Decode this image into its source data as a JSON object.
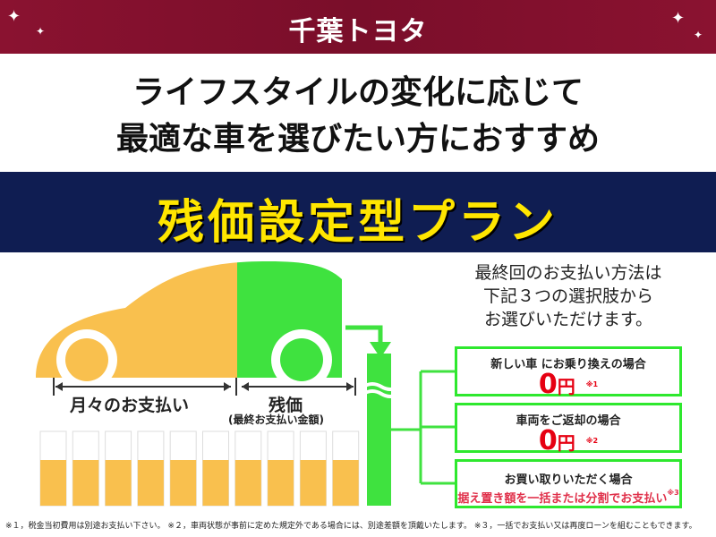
{
  "header": {
    "logo": "千葉トヨタ",
    "color": "#7a0e2a"
  },
  "lead": {
    "line1": "ライフスタイルの変化に応じて",
    "line2": "最適な車を選びたい方におすすめ"
  },
  "band": {
    "title": "残価設定型プラン",
    "bg": "#0f1d52",
    "fg": "#ffe600"
  },
  "diagram": {
    "monthly": "月々のお支払い",
    "residual": "残価",
    "residual_sub": "(最終お支払い金額)",
    "monthly_color": "#f9c04e",
    "residual_color": "#3fe23f"
  },
  "choices": {
    "line1": "最終回のお支払い方法は",
    "line2": "下記３つの選択肢から",
    "line3": "お選びいただけます。"
  },
  "options": [
    {
      "title": "新しい車 にお乗り換えの場合",
      "amount": "0",
      "unit": "円",
      "note": "※1"
    },
    {
      "title": "車両をご返却の場合",
      "amount": "0",
      "unit": "円",
      "note": "※2"
    },
    {
      "title": "お買い取りいただく場合",
      "detail": "据え置き額を一括または分割でお支払い",
      "note": "※3"
    }
  ],
  "footnote": "※１，税金当初費用は別途お支払い下さい。 ※２，車両状態が事前に定めた規定外である場合には、別途差額を頂戴いたします。 ※３，一括でお支払い又は再度ローンを組むこともできます。"
}
